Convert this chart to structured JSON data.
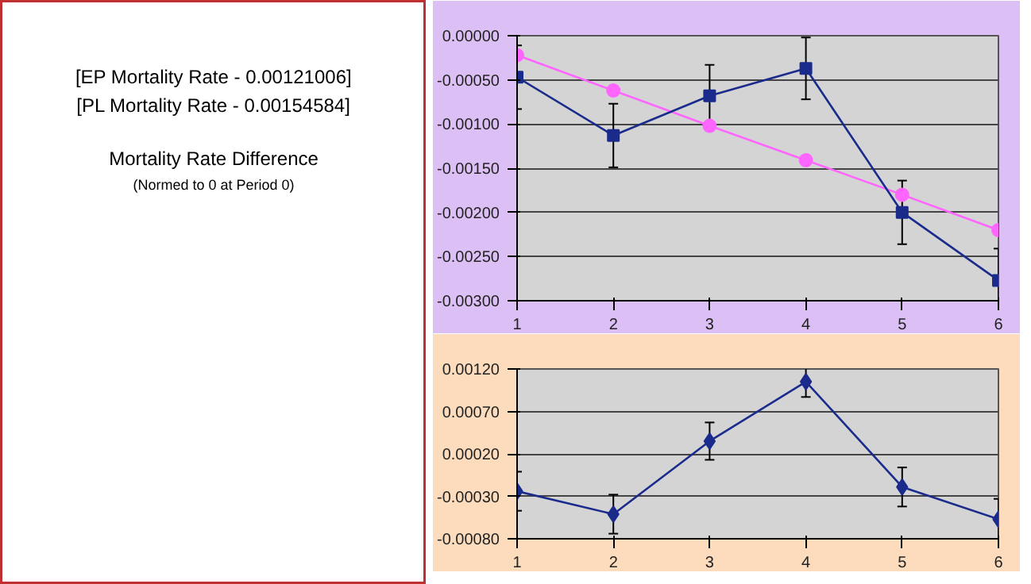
{
  "chart_data": [
    {
      "type": "other",
      "annotations": [
        "[EP Mortality Rate - 0.00121006]",
        "[PL Mortality Rate - 0.00154584]"
      ],
      "title": "Mortality Rate Difference",
      "subtitle": "(Normed to 0 at Period 0)"
    },
    {
      "type": "line",
      "x": [
        1,
        2,
        3,
        4,
        5,
        6
      ],
      "xlim": [
        1,
        6
      ],
      "xticks": [
        1,
        2,
        3,
        4,
        5,
        6
      ],
      "ylim": [
        -0.003,
        0
      ],
      "yticks": [
        {
          "value": 0,
          "label": "0.00000"
        },
        {
          "value": -0.0005,
          "label": "-0.00050"
        },
        {
          "value": -0.001,
          "label": "-0.00100"
        },
        {
          "value": -0.0015,
          "label": "-0.00150"
        },
        {
          "value": -0.002,
          "label": "-0.00200"
        },
        {
          "value": -0.0025,
          "label": "-0.00250"
        },
        {
          "value": -0.003,
          "label": "-0.00300"
        }
      ],
      "grid": "y",
      "series": [
        {
          "color": "#ff66ff",
          "marker": "circle",
          "values": [
            -0.00022,
            -0.00062,
            -0.00102,
            -0.00141,
            -0.0018,
            -0.0022
          ]
        },
        {
          "color": "#1a2b8c",
          "marker": "square",
          "values": [
            -0.00047,
            -0.00113,
            -0.00068,
            -0.00037,
            -0.002,
            -0.00277
          ],
          "errors": [
            0.00036,
            0.00036,
            0.00035,
            0.00035,
            0.00036,
            0.00036
          ]
        }
      ]
    },
    {
      "type": "line",
      "x": [
        1,
        2,
        3,
        4,
        5,
        6
      ],
      "xlim": [
        1,
        6
      ],
      "xticks": [
        1,
        2,
        3,
        4,
        5,
        6
      ],
      "ylim": [
        -0.0008,
        0.0012
      ],
      "yticks": [
        {
          "value": 0.0012,
          "label": "0.00120"
        },
        {
          "value": 0.0007,
          "label": "0.00070"
        },
        {
          "value": 0.0002,
          "label": "0.00020"
        },
        {
          "value": -0.0003,
          "label": "-0.00030"
        },
        {
          "value": -0.0008,
          "label": "-0.00080"
        }
      ],
      "grid": "y",
      "series": [
        {
          "color": "#1a2b8c",
          "marker": "diamond",
          "values": [
            -0.00024,
            -0.00051,
            0.00035,
            0.00105,
            -0.00019,
            -0.00057
          ],
          "errors": [
            0.00023,
            0.00023,
            0.00022,
            0.00018,
            0.00023,
            0.00024
          ]
        }
      ]
    }
  ]
}
